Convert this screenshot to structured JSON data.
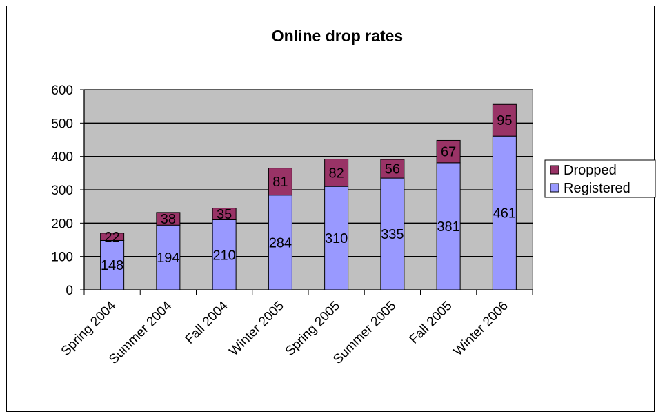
{
  "chart_data": {
    "type": "bar",
    "stacked": true,
    "title": "Online drop rates",
    "xlabel": "",
    "ylabel": "",
    "categories": [
      "Spring 2004",
      "Summer 2004",
      "Fall 2004",
      "Winter 2005",
      "Spring 2005",
      "Summer 2005",
      "Fall 2005",
      "Winter 2006"
    ],
    "series": [
      {
        "name": "Registered",
        "values": [
          148,
          194,
          210,
          284,
          310,
          335,
          381,
          461
        ],
        "color": "#9999ff"
      },
      {
        "name": "Dropped",
        "values": [
          22,
          38,
          35,
          81,
          82,
          56,
          67,
          95
        ],
        "color": "#993366"
      }
    ],
    "ylim": [
      0,
      600
    ],
    "yticks": [
      0,
      100,
      200,
      300,
      400,
      500,
      600
    ],
    "grid": true,
    "plot_background": "#c0c0c0",
    "legend": {
      "position": "right",
      "order": [
        "Dropped",
        "Registered"
      ]
    },
    "data_labels": true
  }
}
